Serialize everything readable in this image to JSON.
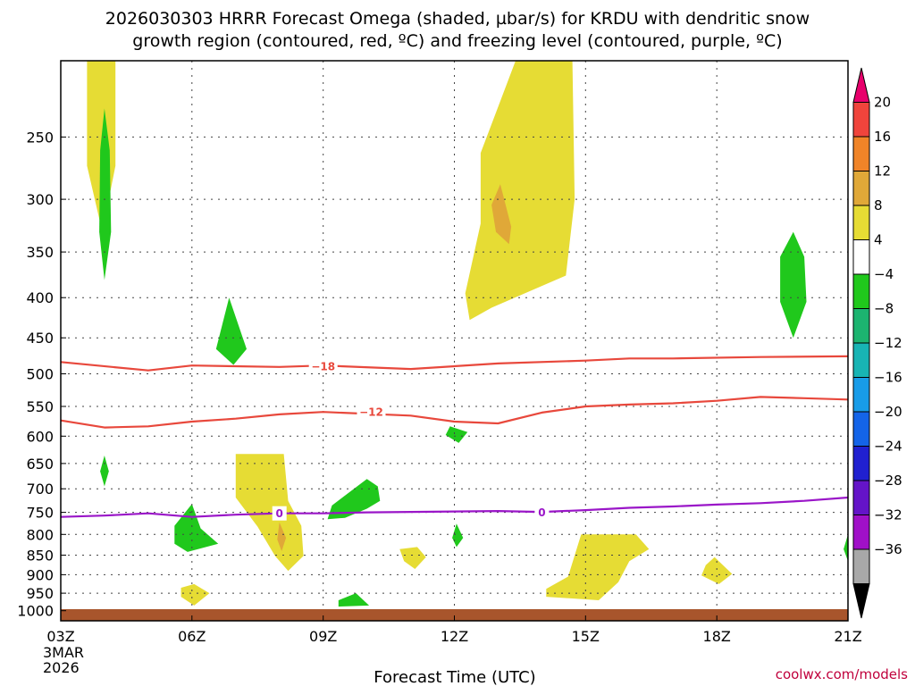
{
  "title": {
    "line1": "2026030303 HRRR Forecast Omega (shaded, µbar/s) for KRDU with dendritic snow",
    "line2": "growth region (contoured, red, ºC) and freezing level (contoured, purple, ºC)"
  },
  "x_axis_label": "Forecast Time (UTC)",
  "credit": "coolwx.com/models",
  "colors": {
    "snow_region": "#e8483c",
    "freezing_level": "#9a16c8",
    "ground": "#a8552c",
    "grid": "#444444"
  },
  "chart_data": {
    "type": "contour",
    "x_ticks": [
      {
        "hour": 0,
        "label": "03Z",
        "sub": [
          "3MAR",
          "2026"
        ]
      },
      {
        "hour": 3,
        "label": "06Z"
      },
      {
        "hour": 6,
        "label": "09Z"
      },
      {
        "hour": 9,
        "label": "12Z"
      },
      {
        "hour": 12,
        "label": "15Z"
      },
      {
        "hour": 15,
        "label": "18Z"
      },
      {
        "hour": 18,
        "label": "21Z"
      }
    ],
    "xlim": [
      0,
      18
    ],
    "ylim_hPa": [
      200,
      1030
    ],
    "y_ticks": [
      250,
      300,
      350,
      400,
      450,
      500,
      550,
      600,
      650,
      700,
      750,
      800,
      850,
      900,
      950,
      1000
    ],
    "colorbar": {
      "labels": [
        "20",
        "16",
        "12",
        "8",
        "4",
        "−4",
        "−8",
        "−12",
        "−16",
        "−20",
        "−24",
        "−28",
        "−32",
        "−36"
      ],
      "colors": [
        "#e8006c",
        "#f0443c",
        "#f08428",
        "#e0a838",
        "#e6dc34",
        "#ffffff",
        "#20c81c",
        "#1cb470",
        "#18b4b4",
        "#189ce8",
        "#1464e8",
        "#2020d0",
        "#6414c8",
        "#a010c8",
        "#a8a8a8",
        "#000000"
      ]
    },
    "omega_regions": [
      {
        "name": "updraft-0400z-upper",
        "level": "4 to 8",
        "color": "#e6dc34",
        "points": [
          [
            0.6,
            200
          ],
          [
            1.25,
            200
          ],
          [
            1.25,
            272
          ],
          [
            0.95,
            330
          ],
          [
            0.6,
            272
          ]
        ]
      },
      {
        "name": "updraft-0500z-upper",
        "level": "-4 to -8",
        "color": "#20c81c",
        "points": [
          [
            1.0,
            230
          ],
          [
            1.12,
            260
          ],
          [
            1.15,
            330
          ],
          [
            1.0,
            380
          ],
          [
            0.88,
            330
          ],
          [
            0.9,
            260
          ]
        ]
      },
      {
        "name": "updraft-0700z-mid",
        "level": "-4 to -8",
        "color": "#20c81c",
        "points": [
          [
            3.85,
            400
          ],
          [
            4.25,
            465
          ],
          [
            3.95,
            487
          ],
          [
            3.55,
            465
          ]
        ]
      },
      {
        "name": "downdraft-1300z-upper",
        "level": "4 to 8",
        "color": "#e6dc34",
        "points": [
          [
            9.6,
            262
          ],
          [
            10.4,
            200
          ],
          [
            11.7,
            200
          ],
          [
            11.75,
            300
          ],
          [
            11.55,
            375
          ],
          [
            9.85,
            412
          ],
          [
            9.35,
            427
          ],
          [
            9.25,
            395
          ],
          [
            9.6,
            322
          ]
        ]
      },
      {
        "name": "downdraft-1300z-core",
        "level": "8 to 12",
        "color": "#e0a838",
        "points": [
          [
            10.05,
            287
          ],
          [
            10.3,
            325
          ],
          [
            10.25,
            342
          ],
          [
            9.95,
            330
          ],
          [
            9.85,
            305
          ]
        ]
      },
      {
        "name": "updraft-2000z-upper",
        "level": "-4 to -8",
        "color": "#20c81c",
        "points": [
          [
            16.75,
            330
          ],
          [
            17.0,
            355
          ],
          [
            17.05,
            405
          ],
          [
            16.75,
            450
          ],
          [
            16.45,
            405
          ],
          [
            16.45,
            355
          ]
        ]
      },
      {
        "name": "updraft-1200z-600",
        "level": "-4 to -8",
        "color": "#20c81c",
        "points": [
          [
            8.9,
            583
          ],
          [
            9.3,
            593
          ],
          [
            9.1,
            612
          ],
          [
            8.8,
            598
          ]
        ]
      },
      {
        "name": "updraft-0400z-low",
        "level": "-4 to -8",
        "color": "#20c81c",
        "points": [
          [
            1.0,
            635
          ],
          [
            1.1,
            665
          ],
          [
            1.0,
            695
          ],
          [
            0.9,
            665
          ]
        ]
      },
      {
        "name": "downdraft-0730z-low",
        "level": "4 to 8",
        "color": "#e6dc34",
        "points": [
          [
            4.0,
            632
          ],
          [
            5.1,
            632
          ],
          [
            5.2,
            725
          ],
          [
            5.5,
            780
          ],
          [
            5.55,
            852
          ],
          [
            5.2,
            890
          ],
          [
            4.9,
            852
          ],
          [
            4.5,
            782
          ],
          [
            4.0,
            718
          ]
        ]
      },
      {
        "name": "downdraft-0800z-core",
        "level": "8 to 12",
        "color": "#e0a838",
        "points": [
          [
            5.0,
            772
          ],
          [
            5.15,
            808
          ],
          [
            5.05,
            840
          ],
          [
            4.95,
            812
          ]
        ]
      },
      {
        "name": "updraft-1000z-700",
        "level": "-4 to -8",
        "color": "#20c81c",
        "points": [
          [
            6.2,
            735
          ],
          [
            7.0,
            680
          ],
          [
            7.25,
            695
          ],
          [
            7.3,
            725
          ],
          [
            7.0,
            742
          ],
          [
            6.5,
            762
          ],
          [
            6.1,
            765
          ]
        ]
      },
      {
        "name": "updraft-0600z-800",
        "level": "-4 to -8",
        "color": "#20c81c",
        "points": [
          [
            2.6,
            780
          ],
          [
            3.0,
            732
          ],
          [
            3.2,
            786
          ],
          [
            3.6,
            822
          ],
          [
            2.9,
            842
          ],
          [
            2.6,
            822
          ]
        ]
      },
      {
        "name": "updraft-1200z-800",
        "level": "-4 to -8",
        "color": "#20c81c",
        "points": [
          [
            9.05,
            775
          ],
          [
            9.2,
            808
          ],
          [
            9.05,
            830
          ],
          [
            8.95,
            808
          ]
        ]
      },
      {
        "name": "updraft-2100z-800",
        "level": "-4 to -8",
        "color": "#20c81c",
        "points": [
          [
            18.0,
            800
          ],
          [
            17.9,
            835
          ],
          [
            18.0,
            865
          ]
        ]
      },
      {
        "name": "downdraft-1100z-850",
        "level": "4 to 8",
        "color": "#e6dc34",
        "points": [
          [
            7.75,
            835
          ],
          [
            8.15,
            830
          ],
          [
            8.35,
            855
          ],
          [
            8.1,
            885
          ],
          [
            7.85,
            865
          ]
        ]
      },
      {
        "name": "downdraft-1600z-low",
        "level": "4 to 8",
        "color": "#e6dc34",
        "points": [
          [
            11.9,
            800
          ],
          [
            13.15,
            800
          ],
          [
            13.45,
            835
          ],
          [
            13.0,
            865
          ],
          [
            12.75,
            920
          ],
          [
            12.3,
            970
          ],
          [
            11.1,
            960
          ],
          [
            11.1,
            938
          ],
          [
            11.6,
            905
          ]
        ]
      },
      {
        "name": "downdraft-1830z-low",
        "level": "4 to 8",
        "color": "#e6dc34",
        "points": [
          [
            14.75,
            875
          ],
          [
            14.95,
            855
          ],
          [
            15.35,
            898
          ],
          [
            15.05,
            925
          ],
          [
            14.65,
            902
          ]
        ]
      },
      {
        "name": "downdraft-0600z-950",
        "level": "4 to 8",
        "color": "#e6dc34",
        "points": [
          [
            2.75,
            935
          ],
          [
            3.05,
            925
          ],
          [
            3.4,
            950
          ],
          [
            3.05,
            985
          ],
          [
            2.75,
            960
          ]
        ]
      },
      {
        "name": "updraft-1000z-950",
        "level": "-4 to -8",
        "color": "#20c81c",
        "points": [
          [
            6.35,
            970
          ],
          [
            6.75,
            950
          ],
          [
            7.05,
            985
          ],
          [
            6.35,
            988
          ]
        ]
      }
    ],
    "temperature_contours": [
      {
        "label": "-18",
        "kind": "dendritic snow growth",
        "color": "#e8483c",
        "label_at": [
          6.0,
          489
        ],
        "points": [
          [
            0,
            483
          ],
          [
            2,
            495
          ],
          [
            3,
            488
          ],
          [
            5,
            490
          ],
          [
            6,
            488
          ],
          [
            8,
            493
          ],
          [
            10,
            485
          ],
          [
            12,
            481
          ],
          [
            13,
            478
          ],
          [
            14,
            478
          ],
          [
            16,
            476
          ],
          [
            18,
            475
          ]
        ]
      },
      {
        "label": "-12",
        "kind": "dendritic snow growth",
        "color": "#e8483c",
        "label_at": [
          7.1,
          559
        ],
        "points": [
          [
            0,
            573
          ],
          [
            1,
            585
          ],
          [
            2,
            583
          ],
          [
            3,
            575
          ],
          [
            4,
            570
          ],
          [
            5,
            563
          ],
          [
            6,
            559
          ],
          [
            8,
            565
          ],
          [
            9,
            575
          ],
          [
            10,
            578
          ],
          [
            11,
            560
          ],
          [
            12,
            550
          ],
          [
            13,
            547
          ],
          [
            14,
            545
          ],
          [
            15,
            541
          ],
          [
            16,
            535
          ],
          [
            17,
            537
          ],
          [
            18,
            539
          ]
        ]
      }
    ],
    "freezing_level": {
      "label": "0",
      "color": "#9a16c8",
      "label_ats": [
        [
          5.0,
          752
        ],
        [
          11.0,
          750
        ]
      ],
      "points": [
        [
          0,
          760
        ],
        [
          1,
          757
        ],
        [
          2,
          752
        ],
        [
          3,
          760
        ],
        [
          4,
          755
        ],
        [
          5,
          752
        ],
        [
          6,
          752
        ],
        [
          7,
          750
        ],
        [
          8,
          749
        ],
        [
          9,
          748
        ],
        [
          10,
          747
        ],
        [
          11,
          749
        ],
        [
          12,
          745
        ],
        [
          13,
          740
        ],
        [
          14,
          737
        ],
        [
          15,
          733
        ],
        [
          16,
          730
        ],
        [
          17,
          725
        ],
        [
          18,
          718
        ]
      ]
    }
  }
}
